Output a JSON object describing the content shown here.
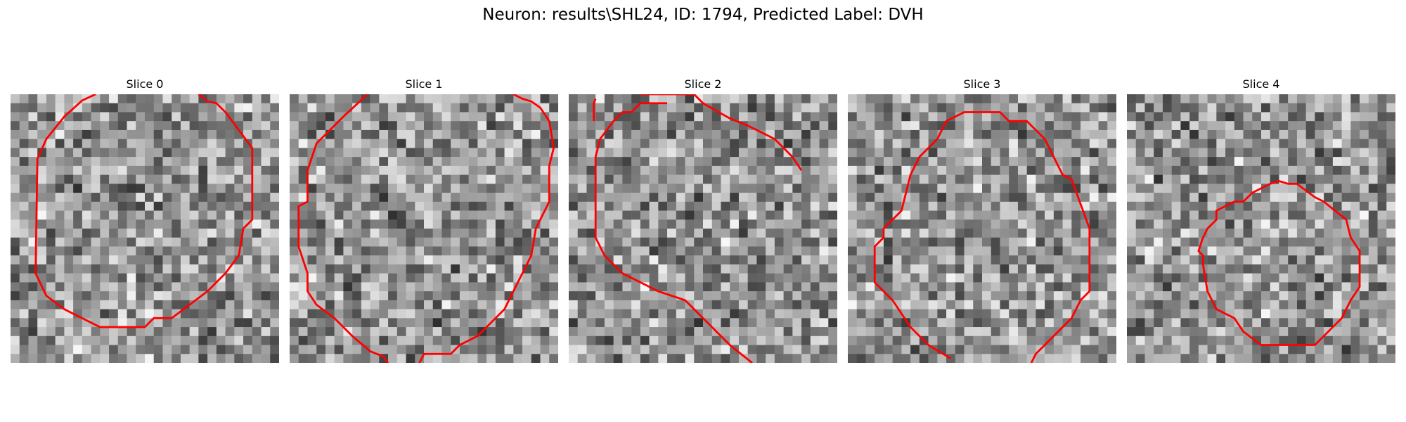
{
  "figure": {
    "title": "Neuron: results\\SHL24, ID: 1794, Predicted Label: DVH"
  },
  "panels": [
    {
      "title": "Slice 0"
    },
    {
      "title": "Slice 1"
    },
    {
      "title": "Slice 2"
    },
    {
      "title": "Slice 3"
    },
    {
      "title": "Slice 4"
    }
  ],
  "colors": {
    "contour": "#ff0000",
    "background": "#ffffff"
  }
}
